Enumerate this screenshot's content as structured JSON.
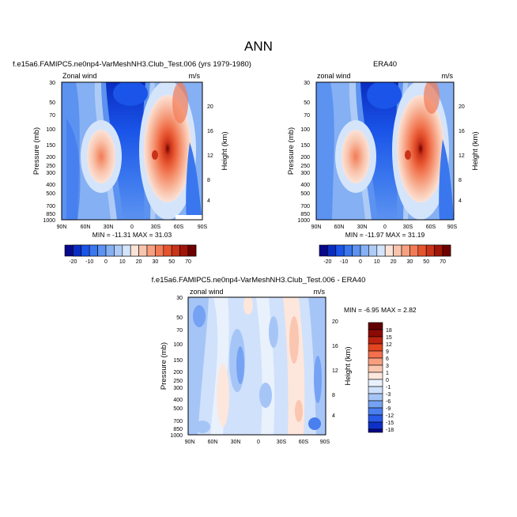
{
  "page": {
    "title": "ANN"
  },
  "palette": {
    "diverging": [
      "#08088a",
      "#0a2dc0",
      "#1a54e8",
      "#3a77ee",
      "#5c92f0",
      "#85b0f3",
      "#aecbf6",
      "#d4e4fa",
      "#fbe3d8",
      "#f9c4ad",
      "#f6a081",
      "#f27b56",
      "#e5542f",
      "#c8331a",
      "#a01506",
      "#700000"
    ],
    "difference": [
      "#08088a",
      "#0f30c8",
      "#2a5ae8",
      "#4a7ff0",
      "#76a2f3",
      "#a6c5f7",
      "#d0e1fb",
      "#e9f1fd",
      "#fde6dc",
      "#fbc6b0",
      "#f79e80",
      "#f2704d",
      "#e3451f",
      "#bd2210",
      "#8c0a04",
      "#600000"
    ]
  },
  "chart_data": [
    {
      "type": "heatmap",
      "title": "f.e15a6.FAMIPC5.ne0np4-VarMeshNH3.Club_Test.006 (yrs 1979-1980)",
      "subtitle_left": "Zonal wind",
      "subtitle_right": "m/s",
      "ylabel": "Pressure (mb)",
      "ylabel_right": "Height (km)",
      "x_ticks": [
        "90N",
        "60N",
        "30N",
        "0",
        "30S",
        "60S",
        "90S"
      ],
      "y_ticks": [
        "30",
        "50",
        "70",
        "100",
        "150",
        "200",
        "250",
        "300",
        "400",
        "500",
        "700",
        "850",
        "1000"
      ],
      "y_ticks_right": [
        "20",
        "16",
        "12",
        "8",
        "4"
      ],
      "min_max": "MIN = -11.31   MAX =  31.03",
      "contour_levels": [
        -20,
        -10,
        0,
        10,
        20,
        30,
        40,
        50,
        70
      ],
      "colorbar_labels": [
        "-20",
        "-10",
        "0",
        "10",
        "20",
        "30",
        "50",
        "70"
      ]
    },
    {
      "type": "heatmap",
      "title": "ERA40",
      "subtitle_left": "zonal wind",
      "subtitle_right": "m/s",
      "ylabel": "Pressure (mb)",
      "ylabel_right": "Height (km)",
      "x_ticks": [
        "90N",
        "60N",
        "30N",
        "0",
        "30S",
        "60S",
        "90S"
      ],
      "y_ticks": [
        "30",
        "50",
        "70",
        "100",
        "150",
        "200",
        "250",
        "300",
        "400",
        "500",
        "700",
        "850",
        "1000"
      ],
      "y_ticks_right": [
        "20",
        "16",
        "12",
        "8",
        "4"
      ],
      "min_max": "MIN = -11.97   MAX =  31.19",
      "contour_levels": [
        -20,
        -10,
        0,
        10,
        20,
        30,
        40,
        50,
        70
      ]
    },
    {
      "type": "heatmap",
      "title": "f.e15a6.FAMIPC5.ne0np4-VarMeshNH3.Club_Test.006 - ERA40",
      "subtitle_left": "zonal wind",
      "subtitle_right": "m/s",
      "ylabel": "Pressure (mb)",
      "ylabel_right": "Height (km)",
      "x_ticks": [
        "90N",
        "60N",
        "30N",
        "0",
        "30S",
        "60S",
        "90S"
      ],
      "y_ticks": [
        "30",
        "50",
        "70",
        "100",
        "150",
        "200",
        "250",
        "300",
        "400",
        "500",
        "700",
        "850",
        "1000"
      ],
      "y_ticks_right": [
        "20",
        "16",
        "12",
        "8",
        "4"
      ],
      "min_max": "MIN =  -6.95   MAX =   2.82",
      "contour_levels": [
        -18,
        -15,
        -12,
        -9,
        -6,
        -3,
        -1,
        0,
        1,
        3,
        6,
        9,
        12,
        15,
        18
      ],
      "colorbar_labels": [
        "18",
        "15",
        "12",
        "9",
        "6",
        "3",
        "1",
        "0",
        "-1",
        "-3",
        "-6",
        "-9",
        "-12",
        "-15",
        "-18"
      ]
    }
  ]
}
